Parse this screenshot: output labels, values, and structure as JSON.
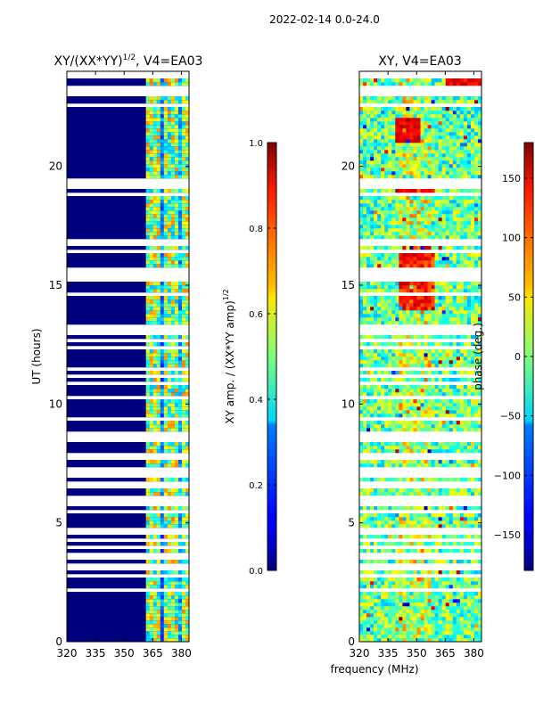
{
  "chart_data": {
    "type": "heatmap",
    "suptitle": "2022-02-14 0.0-24.0",
    "shared_xlabel": "frequency (MHz)",
    "panels": [
      {
        "id": "amplitude",
        "title_main": "XY/(XX*YY)",
        "title_sup": "1/2",
        "title_tail": ", V4=EA03",
        "ylabel": "UT (hours)",
        "xlim": [
          320,
          384
        ],
        "ylim": [
          0,
          24
        ],
        "xticks": [
          320,
          335,
          350,
          365,
          380
        ],
        "yticks": [
          0,
          5,
          10,
          15,
          20
        ],
        "colorbar": {
          "label_main": "XY amp. / (XX*YY amp)",
          "label_sup": "1/2",
          "range": [
            0.0,
            1.0
          ],
          "ticks": [
            "0.0",
            "0.2",
            "0.4",
            "0.6",
            "0.8",
            "1.0"
          ],
          "tick_values": [
            0.0,
            0.2,
            0.4,
            0.6,
            0.8,
            1.0
          ]
        },
        "description_values": {
          "background_low_band_320_362": 0.0,
          "active_band_362_384_typical": 0.45
        }
      },
      {
        "id": "phase",
        "title_main": "XY, V4=EA03",
        "xlim": [
          320,
          384
        ],
        "ylim": [
          0,
          24
        ],
        "xticks": [
          320,
          335,
          350,
          365,
          380
        ],
        "yticks": [
          0,
          5,
          10,
          15,
          20
        ],
        "colorbar": {
          "label_main": "phase (deg.)",
          "range": [
            -180,
            180
          ],
          "ticks": [
            "−150",
            "−100",
            "−50",
            "0",
            "50",
            "100",
            "150"
          ],
          "tick_values": [
            -150,
            -100,
            -50,
            0,
            50,
            100,
            150
          ]
        }
      }
    ]
  },
  "colors": {
    "axis": "#000000",
    "background": "#ffffff",
    "low": "#00007f",
    "high": "#7f0000"
  }
}
